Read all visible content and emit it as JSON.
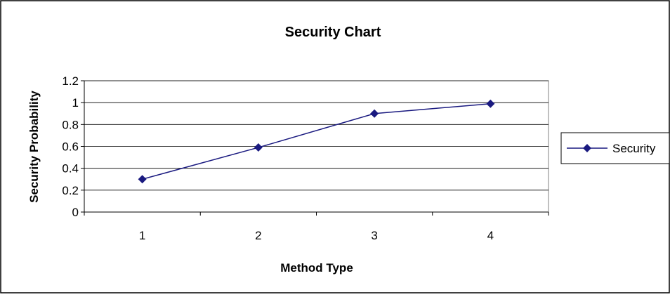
{
  "chart_data": {
    "type": "line",
    "title": "Security Chart",
    "xlabel": "Method Type",
    "ylabel": "Security Probability",
    "categories": [
      "1",
      "2",
      "3",
      "4"
    ],
    "y_ticks": [
      "0",
      "0.2",
      "0.4",
      "0.6",
      "0.8",
      "1",
      "1.2"
    ],
    "ylim": [
      0,
      1.2
    ],
    "series": [
      {
        "name": "Security",
        "values": [
          0.3,
          0.59,
          0.9,
          0.99
        ]
      }
    ],
    "grid": true,
    "legend_position": "right",
    "colors": {
      "series": "#1a1a80",
      "grid": "#000000",
      "plot_border": "#808080",
      "frame": "#000000"
    }
  }
}
